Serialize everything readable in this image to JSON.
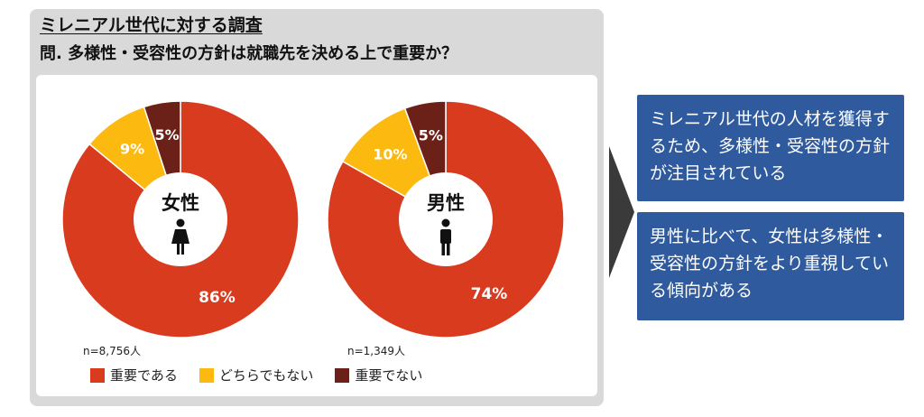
{
  "header": {
    "title": "ミレニアル世代に対する調査",
    "question": "問. 多様性・受容性の方針は就職先を決める上で重要か？"
  },
  "colors": {
    "important": "#d93b1f",
    "neutral": "#fcb910",
    "not_important": "#6b2118",
    "panel": "#d9d9d9",
    "box": "#2f5b9e"
  },
  "chart_data": [
    {
      "type": "pie",
      "center_label": "女性",
      "center_icon": "female-icon",
      "sample": "n=8,756人",
      "categories": [
        "重要である",
        "どちらでもない",
        "重要でない"
      ],
      "values": [
        86,
        9,
        5
      ],
      "labels": [
        "86%",
        "9%",
        "5%"
      ]
    },
    {
      "type": "pie",
      "center_label": "男性",
      "center_icon": "male-icon",
      "sample": "n=1,349人",
      "categories": [
        "重要である",
        "どちらでもない",
        "重要でない"
      ],
      "values": [
        74,
        10,
        5
      ],
      "labels": [
        "74%",
        "10%",
        "5%"
      ],
      "note": ""
    }
  ],
  "legend": {
    "items": [
      "重要である",
      "どちらでもない",
      "重要でない"
    ],
    "position": "bottom"
  },
  "boxes": [
    {
      "text": "ミレニアル世代の人材を獲得するため、多様性・受容性の方針が注目されている"
    },
    {
      "text": "男性に比べて、女性は多様性・受容性の方針をより重視している傾向がある"
    }
  ]
}
